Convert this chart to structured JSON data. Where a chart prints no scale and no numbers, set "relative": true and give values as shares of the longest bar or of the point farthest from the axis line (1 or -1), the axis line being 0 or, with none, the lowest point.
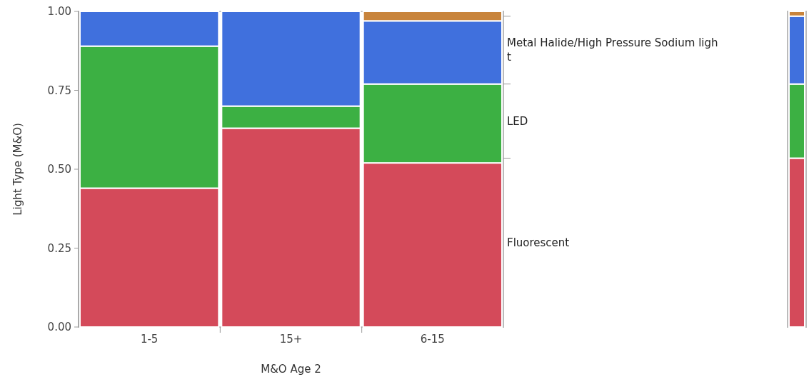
{
  "chart_data": [
    {
      "type": "bar",
      "stacked": true,
      "xlabel": "M&O Age 2",
      "ylabel": "Light Type (M&O)",
      "categories": [
        "1-5",
        "15+",
        "6-15"
      ],
      "ylim": [
        0,
        1
      ],
      "yticks": [
        {
          "value": 0,
          "label": "0.00"
        },
        {
          "value": 0.25,
          "label": "0.25"
        },
        {
          "value": 0.5,
          "label": "0.50"
        },
        {
          "value": 0.75,
          "label": "0.75"
        },
        {
          "value": 1,
          "label": "1.00"
        }
      ],
      "series": [
        {
          "name": "Fluorescent",
          "color": "#d44a5a",
          "values": [
            0.44,
            0.63,
            0.52
          ]
        },
        {
          "name": "LED",
          "color": "#3cb043",
          "values": [
            0.45,
            0.07,
            0.25
          ]
        },
        {
          "name": "Metal Halide/High Pressure Sodium light",
          "color": "#4070dd",
          "values": [
            0.11,
            0.3,
            0.2
          ]
        },
        {
          "color": "#c8843c",
          "values": [
            0,
            0,
            0.03
          ]
        }
      ]
    },
    {
      "type": "bar",
      "stacked": true,
      "relative": true,
      "categories": [
        null
      ],
      "series": [
        {
          "color": "#d44a5a",
          "values": [
            0.535
          ]
        },
        {
          "color": "#3cb043",
          "values": [
            0.235
          ]
        },
        {
          "color": "#4070dd",
          "values": [
            0.215
          ]
        },
        {
          "color": "#c8843c",
          "values": [
            0.015
          ]
        }
      ]
    }
  ]
}
